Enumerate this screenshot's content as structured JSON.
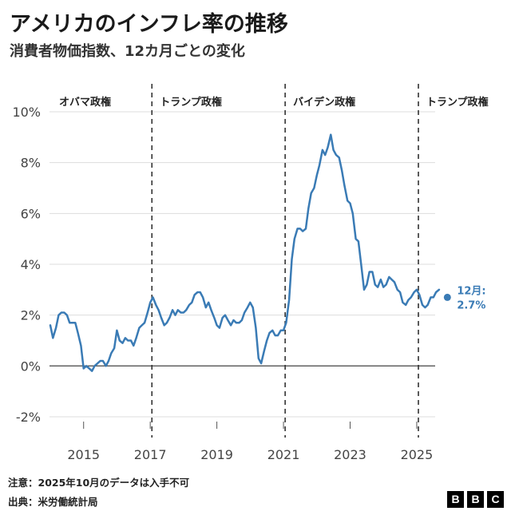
{
  "header": {
    "title": "アメリカのインフレ率の推移",
    "subtitle": "消費者物価指数、12カ月ごとの変化"
  },
  "footer": {
    "note": "注意：2025年10月のデータは入手不可",
    "source": "出典：米労働統計局"
  },
  "logo": {
    "letters": [
      "B",
      "B",
      "C"
    ]
  },
  "chart_data": {
    "type": "line",
    "title": "アメリカのインフレ率の推移",
    "subtitle": "消費者物価指数、12カ月ごとの変化",
    "xlabel": "",
    "ylabel": "",
    "xlim": [
      2014,
      2026.2
    ],
    "ylim": [
      -2,
      10
    ],
    "x_ticks": [
      2015,
      2017,
      2019,
      2021,
      2023,
      2025
    ],
    "x_tick_labels": [
      "2015",
      "2017",
      "2019",
      "2021",
      "2023",
      "2025"
    ],
    "y_ticks": [
      -2,
      0,
      2,
      4,
      6,
      8,
      10
    ],
    "y_tick_labels": [
      "-2%",
      "0%",
      "2%",
      "4%",
      "6%",
      "8%",
      "10%"
    ],
    "grid": "horizontal",
    "line_color": "#3a7bb5",
    "zero_line_color": "#555555",
    "grid_color": "#dddddd",
    "period_dividers": [
      2017.05,
      2021.05,
      2025.05
    ],
    "periods": [
      {
        "label": "オバマ政権",
        "start": 2014
      },
      {
        "label": "トランプ政権",
        "start": 2017.05
      },
      {
        "label": "バイデン政権",
        "start": 2021.05
      },
      {
        "label": "トランプ政権",
        "start": 2025.05
      }
    ],
    "latest_point": {
      "x": 2025.92,
      "y": 2.7,
      "label_month": "12月:",
      "label_value": "2.7%"
    },
    "series": [
      {
        "x": [
          2014.0,
          2014.08,
          2014.17,
          2014.25,
          2014.33,
          2014.42,
          2014.5,
          2014.58,
          2014.67,
          2014.75,
          2014.83,
          2014.92,
          2015.0,
          2015.08,
          2015.17,
          2015.25,
          2015.33,
          2015.42,
          2015.5,
          2015.58,
          2015.67,
          2015.75,
          2015.83,
          2015.92,
          2016.0,
          2016.08,
          2016.17,
          2016.25,
          2016.33,
          2016.42,
          2016.5,
          2016.58,
          2016.67,
          2016.75,
          2016.83,
          2016.92,
          2017.0,
          2017.08,
          2017.17,
          2017.25,
          2017.33,
          2017.42,
          2017.5,
          2017.58,
          2017.67,
          2017.75,
          2017.83,
          2017.92,
          2018.0,
          2018.08,
          2018.17,
          2018.25,
          2018.33,
          2018.42,
          2018.5,
          2018.58,
          2018.67,
          2018.75,
          2018.83,
          2018.92,
          2019.0,
          2019.08,
          2019.17,
          2019.25,
          2019.33,
          2019.42,
          2019.5,
          2019.58,
          2019.67,
          2019.75,
          2019.83,
          2019.92,
          2020.0,
          2020.08,
          2020.17,
          2020.25,
          2020.33,
          2020.42,
          2020.5,
          2020.58,
          2020.67,
          2020.75,
          2020.83,
          2020.92,
          2021.0,
          2021.08,
          2021.17,
          2021.25,
          2021.33,
          2021.42,
          2021.5,
          2021.58,
          2021.67,
          2021.75,
          2021.83,
          2021.92,
          2022.0,
          2022.08,
          2022.17,
          2022.25,
          2022.33,
          2022.42,
          2022.5,
          2022.58,
          2022.67,
          2022.75,
          2022.83,
          2022.92,
          2023.0,
          2023.08,
          2023.17,
          2023.25,
          2023.33,
          2023.42,
          2023.5,
          2023.58,
          2023.67,
          2023.75,
          2023.83,
          2023.92,
          2024.0,
          2024.08,
          2024.17,
          2024.25,
          2024.33,
          2024.42,
          2024.5,
          2024.58,
          2024.67,
          2024.75,
          2024.83,
          2024.92,
          2025.0,
          2025.08,
          2025.17,
          2025.25,
          2025.33,
          2025.42,
          2025.5,
          2025.58,
          2025.67
        ],
        "values": [
          1.6,
          1.1,
          1.5,
          2.0,
          2.1,
          2.1,
          2.0,
          1.7,
          1.7,
          1.7,
          1.3,
          0.8,
          -0.1,
          0.0,
          -0.1,
          -0.2,
          0.0,
          0.1,
          0.2,
          0.2,
          0.0,
          0.2,
          0.5,
          0.7,
          1.4,
          1.0,
          0.9,
          1.1,
          1.0,
          1.0,
          0.8,
          1.1,
          1.5,
          1.6,
          1.7,
          2.1,
          2.5,
          2.7,
          2.4,
          2.2,
          1.9,
          1.6,
          1.7,
          1.9,
          2.2,
          2.0,
          2.2,
          2.1,
          2.1,
          2.2,
          2.4,
          2.5,
          2.8,
          2.9,
          2.9,
          2.7,
          2.3,
          2.5,
          2.2,
          1.9,
          1.6,
          1.5,
          1.9,
          2.0,
          1.8,
          1.6,
          1.8,
          1.7,
          1.7,
          1.8,
          2.1,
          2.3,
          2.5,
          2.3,
          1.5,
          0.3,
          0.1,
          0.6,
          1.0,
          1.3,
          1.4,
          1.2,
          1.2,
          1.4,
          1.4,
          1.7,
          2.6,
          4.2,
          5.0,
          5.4,
          5.4,
          5.3,
          5.4,
          6.2,
          6.8,
          7.0,
          7.5,
          7.9,
          8.5,
          8.3,
          8.6,
          9.1,
          8.5,
          8.3,
          8.2,
          7.7,
          7.1,
          6.5,
          6.4,
          6.0,
          5.0,
          4.9,
          4.0,
          3.0,
          3.2,
          3.7,
          3.7,
          3.2,
          3.1,
          3.4,
          3.1,
          3.2,
          3.5,
          3.4,
          3.3,
          3.0,
          2.9,
          2.5,
          2.4,
          2.6,
          2.7,
          2.9,
          3.0,
          2.8,
          2.4,
          2.3,
          2.4,
          2.7,
          2.7,
          2.9,
          3.0
        ]
      }
    ]
  }
}
